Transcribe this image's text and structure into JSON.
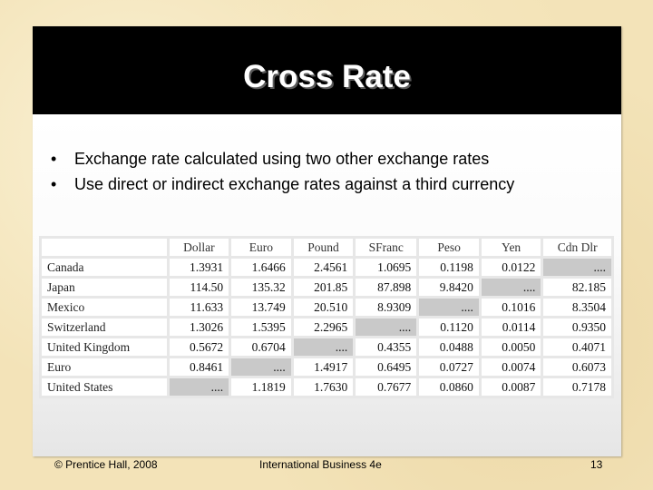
{
  "slide": {
    "title": "Cross Rate",
    "bullets": [
      "Exchange rate calculated using two other exchange rates",
      "Use direct or indirect exchange rates against a third currency"
    ],
    "bullet_char": "•",
    "table": {
      "columns": [
        "Dollar",
        "Euro",
        "Pound",
        "SFranc",
        "Peso",
        "Yen",
        "Cdn Dlr"
      ],
      "rows": [
        {
          "label": "Canada",
          "values": [
            "1.3931",
            "1.6466",
            "2.4561",
            "1.0695",
            "0.1198",
            "0.0122",
            "...."
          ]
        },
        {
          "label": "Japan",
          "values": [
            "114.50",
            "135.32",
            "201.85",
            "87.898",
            "9.8420",
            "....",
            "82.185"
          ]
        },
        {
          "label": "Mexico",
          "values": [
            "11.633",
            "13.749",
            "20.510",
            "8.9309",
            "....",
            "0.1016",
            "8.3504"
          ]
        },
        {
          "label": "Switzerland",
          "values": [
            "1.3026",
            "1.5395",
            "2.2965",
            "....",
            "0.1120",
            "0.0114",
            "0.9350"
          ]
        },
        {
          "label": "United Kingdom",
          "values": [
            "0.5672",
            "0.6704",
            "....",
            "0.4355",
            "0.0488",
            "0.0050",
            "0.4071"
          ]
        },
        {
          "label": "Euro",
          "values": [
            "0.8461",
            "....",
            "1.4917",
            "0.6495",
            "0.0727",
            "0.0074",
            "0.6073"
          ]
        },
        {
          "label": "United States",
          "values": [
            "....",
            "1.1819",
            "1.7630",
            "0.7677",
            "0.0860",
            "0.0087",
            "0.7178"
          ]
        }
      ]
    }
  },
  "footer": {
    "copyright": "© Prentice Hall, 2008",
    "course": "International Business 4e",
    "page_number": "13"
  }
}
